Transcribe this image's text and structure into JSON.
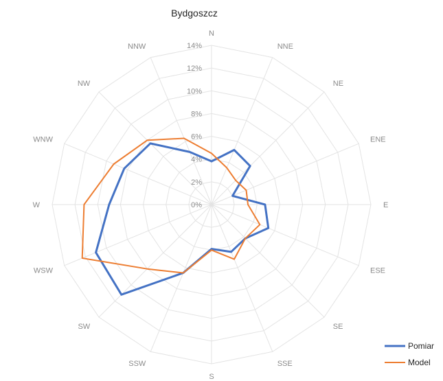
{
  "chart_data": {
    "type": "radar",
    "title": "Bydgoszcz",
    "categories": [
      "N",
      "NNE",
      "NE",
      "ENE",
      "E",
      "ESE",
      "SE",
      "SSE",
      "S",
      "SSW",
      "SW",
      "WSW",
      "W",
      "WNW",
      "NW",
      "NNW"
    ],
    "r_range": [
      0,
      14
    ],
    "r_ticks": [
      0,
      2,
      4,
      6,
      8,
      10,
      12,
      14
    ],
    "r_tick_labels": [
      "0%",
      "2%",
      "4%",
      "6%",
      "8%",
      "10%",
      "12%",
      "14%"
    ],
    "grid": true,
    "legend_position": "bottom-right",
    "series": [
      {
        "name": "Pomiar",
        "color": "#4472c4",
        "values": [
          3.8,
          5.2,
          4.8,
          2.0,
          4.7,
          5.4,
          4.2,
          4.5,
          3.9,
          6.5,
          11.2,
          11.0,
          9.0,
          8.3,
          7.6,
          5.0
        ]
      },
      {
        "name": "Model",
        "color": "#ed7d31",
        "values": [
          4.5,
          3.5,
          3.0,
          3.3,
          3.2,
          4.6,
          4.2,
          5.2,
          4.0,
          6.5,
          8.0,
          12.3,
          11.2,
          9.3,
          8.0,
          6.3
        ]
      }
    ]
  }
}
